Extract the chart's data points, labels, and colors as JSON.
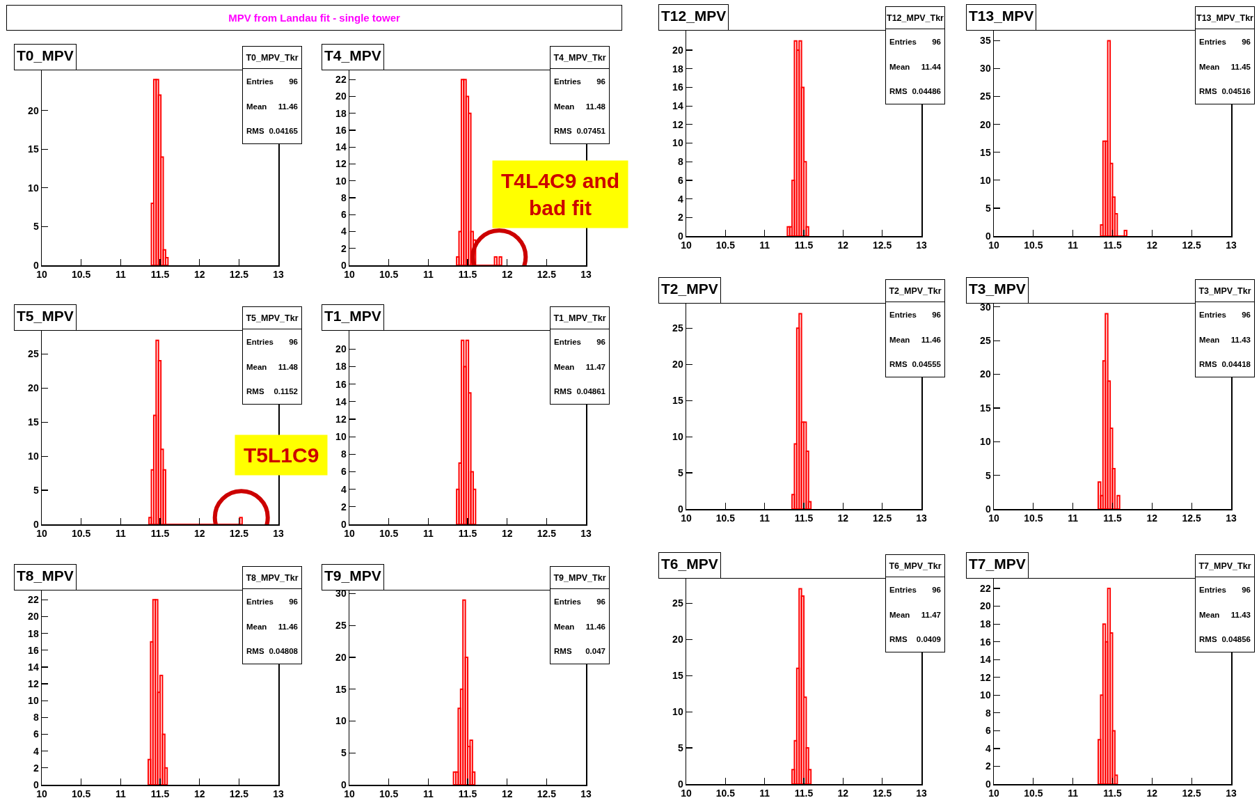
{
  "chart_data": [
    {
      "type": "other",
      "title": "MPV from Landau fit - single tower",
      "color": "#ff00ff"
    },
    {
      "type": "histogram",
      "title": "T0_MPV",
      "color": "#ff0000",
      "bins": [
        11.39,
        11.42,
        11.45,
        11.48,
        11.51,
        11.54,
        11.57,
        11.6
      ],
      "values": [
        8,
        24,
        24,
        22,
        14,
        2,
        1
      ],
      "xlim": [
        10,
        13
      ],
      "xticks": [
        10,
        10.5,
        11,
        11.5,
        12,
        12.5,
        13
      ],
      "ylim": [
        0,
        25.2
      ],
      "yticks": [
        0,
        5,
        10,
        15,
        20
      ],
      "annotations": [
        "T0_MPV_Tkr",
        "Entries 96",
        "Mean 11.46",
        "RMS 0.04165"
      ]
    },
    {
      "type": "histogram",
      "title": "T4_MPV",
      "color": "#ff0000",
      "bins": [
        11.36,
        11.39,
        11.42,
        11.45,
        11.48,
        11.51,
        11.54,
        11.57,
        11.6,
        11.84,
        11.87,
        11.9,
        11.93
      ],
      "values": [
        1,
        4,
        22,
        22,
        20,
        18,
        4,
        3,
        0,
        1,
        0,
        1
      ],
      "xlim": [
        10,
        13
      ],
      "xticks": [
        10,
        10.5,
        11,
        11.5,
        12,
        12.5,
        13
      ],
      "ylim": [
        0,
        23.1
      ],
      "yticks": [
        0,
        2,
        4,
        6,
        8,
        10,
        12,
        14,
        16,
        18,
        20,
        22
      ],
      "annotations": [
        "T4_MPV_Tkr",
        "Entries 96",
        "Mean 11.48",
        "RMS 0.07451",
        {
          "text": "T4L4C9 and\nbad fit",
          "x": 11.9,
          "y": 1
        }
      ]
    },
    {
      "type": "histogram",
      "title": "T12_MPV",
      "color": "#ff0000",
      "bins": [
        11.29,
        11.32,
        11.35,
        11.38,
        11.41,
        11.44,
        11.47,
        11.5,
        11.53,
        11.56
      ],
      "values": [
        1,
        1,
        6,
        21,
        20,
        21,
        16,
        8,
        1
      ],
      "xlim": [
        10,
        13
      ],
      "xticks": [
        10,
        10.5,
        11,
        11.5,
        12,
        12.5,
        13
      ],
      "ylim": [
        0,
        22.1
      ],
      "yticks": [
        0,
        2,
        4,
        6,
        8,
        10,
        12,
        14,
        16,
        18,
        20
      ],
      "annotations": [
        "T12_MPV_Tkr",
        "Entries 96",
        "Mean 11.44",
        "RMS 0.04486"
      ]
    },
    {
      "type": "histogram",
      "title": "T13_MPV",
      "color": "#ff0000",
      "bins": [
        11.35,
        11.38,
        11.41,
        11.44,
        11.47,
        11.5,
        11.53,
        11.56,
        11.65,
        11.68
      ],
      "values": [
        2,
        17,
        17,
        35,
        13,
        7,
        4,
        0,
        1
      ],
      "xlim": [
        10,
        13
      ],
      "xticks": [
        10,
        10.5,
        11,
        11.5,
        12,
        12.5,
        13
      ],
      "ylim": [
        0,
        36.8
      ],
      "yticks": [
        0,
        5,
        10,
        15,
        20,
        25,
        30,
        35
      ],
      "annotations": [
        "T13_MPV_Tkr",
        "Entries 96",
        "Mean 11.45",
        "RMS 0.04516"
      ]
    },
    {
      "type": "histogram",
      "title": "T5_MPV",
      "color": "#ff0000",
      "bins": [
        11.36,
        11.39,
        11.42,
        11.45,
        11.48,
        11.51,
        11.54,
        11.57,
        12.51,
        12.54
      ],
      "values": [
        1,
        8,
        16,
        27,
        24,
        11,
        8,
        0,
        1
      ],
      "xlim": [
        10,
        13
      ],
      "xticks": [
        10,
        10.5,
        11,
        11.5,
        12,
        12.5,
        13
      ],
      "ylim": [
        0,
        28.4
      ],
      "yticks": [
        0,
        5,
        10,
        15,
        20,
        25
      ],
      "annotations": [
        "T5_MPV_Tkr",
        "Entries 96",
        "Mean 11.48",
        "RMS 0.1152",
        {
          "text": "T5L1C9",
          "x": 12.53,
          "y": 1
        }
      ]
    },
    {
      "type": "histogram",
      "title": "T1_MPV",
      "color": "#ff0000",
      "bins": [
        11.36,
        11.39,
        11.42,
        11.45,
        11.48,
        11.51,
        11.54,
        11.57,
        11.6
      ],
      "values": [
        4,
        7,
        21,
        18,
        21,
        15,
        6,
        4
      ],
      "xlim": [
        10,
        13
      ],
      "xticks": [
        10,
        10.5,
        11,
        11.5,
        12,
        12.5,
        13
      ],
      "ylim": [
        0,
        22.1
      ],
      "yticks": [
        0,
        2,
        4,
        6,
        8,
        10,
        12,
        14,
        16,
        18,
        20
      ],
      "annotations": [
        "T1_MPV_Tkr",
        "Entries 96",
        "Mean 11.47",
        "RMS 0.04861"
      ]
    },
    {
      "type": "histogram",
      "title": "T2_MPV",
      "color": "#ff0000",
      "bins": [
        11.35,
        11.38,
        11.41,
        11.44,
        11.47,
        11.5,
        11.53,
        11.56,
        11.59
      ],
      "values": [
        2,
        9,
        25,
        27,
        12,
        12,
        8,
        1
      ],
      "xlim": [
        10,
        13
      ],
      "xticks": [
        10,
        10.5,
        11,
        11.5,
        12,
        12.5,
        13
      ],
      "ylim": [
        0,
        28.4
      ],
      "yticks": [
        0,
        5,
        10,
        15,
        20,
        25
      ],
      "annotations": [
        "T2_MPV_Tkr",
        "Entries 96",
        "Mean 11.46",
        "RMS 0.04555"
      ]
    },
    {
      "type": "histogram",
      "title": "T3_MPV",
      "color": "#ff0000",
      "bins": [
        11.32,
        11.35,
        11.38,
        11.41,
        11.44,
        11.47,
        11.5,
        11.53,
        11.56,
        11.59
      ],
      "values": [
        4,
        2,
        22,
        29,
        19,
        12,
        6,
        0,
        2
      ],
      "xlim": [
        10,
        13
      ],
      "xticks": [
        10,
        10.5,
        11,
        11.5,
        12,
        12.5,
        13
      ],
      "ylim": [
        0,
        30.5
      ],
      "yticks": [
        0,
        5,
        10,
        15,
        20,
        25,
        30
      ],
      "annotations": [
        "T3_MPV_Tkr",
        "Entries 96",
        "Mean 11.43",
        "RMS 0.04418"
      ]
    },
    {
      "type": "histogram",
      "title": "T8_MPV",
      "color": "#ff0000",
      "bins": [
        11.35,
        11.38,
        11.41,
        11.44,
        11.47,
        11.5,
        11.53,
        11.56,
        11.59
      ],
      "values": [
        3,
        17,
        22,
        22,
        11,
        13,
        6,
        2
      ],
      "xlim": [
        10,
        13
      ],
      "xticks": [
        10,
        10.5,
        11,
        11.5,
        12,
        12.5,
        13
      ],
      "ylim": [
        0,
        23.1
      ],
      "yticks": [
        0,
        2,
        4,
        6,
        8,
        10,
        12,
        14,
        16,
        18,
        20,
        22
      ],
      "annotations": [
        "T8_MPV_Tkr",
        "Entries 96",
        "Mean 11.46",
        "RMS 0.04808"
      ]
    },
    {
      "type": "histogram",
      "title": "T9_MPV",
      "color": "#ff0000",
      "bins": [
        11.32,
        11.35,
        11.38,
        11.41,
        11.44,
        11.47,
        11.5,
        11.53,
        11.56,
        11.59
      ],
      "values": [
        2,
        2,
        12,
        15,
        29,
        20,
        6,
        7,
        2
      ],
      "xlim": [
        10,
        13
      ],
      "xticks": [
        10,
        10.5,
        11,
        11.5,
        12,
        12.5,
        13
      ],
      "ylim": [
        0,
        30.5
      ],
      "yticks": [
        0,
        5,
        10,
        15,
        20,
        25,
        30
      ],
      "annotations": [
        "T9_MPV_Tkr",
        "Entries 96",
        "Mean 11.46",
        "RMS 0.047"
      ]
    },
    {
      "type": "histogram",
      "title": "T6_MPV",
      "color": "#ff0000",
      "bins": [
        11.35,
        11.38,
        11.41,
        11.44,
        11.47,
        11.5,
        11.53,
        11.56,
        11.59
      ],
      "values": [
        2,
        6,
        16,
        27,
        26,
        12,
        5,
        2
      ],
      "xlim": [
        10,
        13
      ],
      "xticks": [
        10,
        10.5,
        11,
        11.5,
        12,
        12.5,
        13
      ],
      "ylim": [
        0,
        28.4
      ],
      "yticks": [
        0,
        5,
        10,
        15,
        20,
        25
      ],
      "annotations": [
        "T6_MPV_Tkr",
        "Entries 96",
        "Mean 11.47",
        "RMS 0.0409"
      ]
    },
    {
      "type": "histogram",
      "title": "T7_MPV",
      "color": "#ff0000",
      "bins": [
        11.32,
        11.35,
        11.38,
        11.41,
        11.44,
        11.47,
        11.5,
        11.53,
        11.56
      ],
      "values": [
        5,
        10,
        18,
        16,
        22,
        17,
        6,
        1
      ],
      "xlim": [
        10,
        13
      ],
      "xticks": [
        10,
        10.5,
        11,
        11.5,
        12,
        12.5,
        13
      ],
      "ylim": [
        0,
        23.1
      ],
      "yticks": [
        0,
        2,
        4,
        6,
        8,
        10,
        12,
        14,
        16,
        18,
        20,
        22
      ],
      "annotations": [
        "T7_MPV_Tkr",
        "Entries 96",
        "Mean 11.43",
        "RMS 0.04856"
      ]
    }
  ]
}
